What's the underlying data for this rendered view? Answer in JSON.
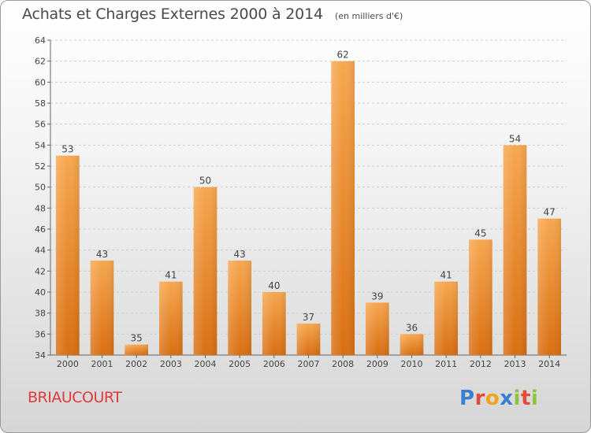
{
  "title": "Achats et Charges Externes 2000 à 2014",
  "subtitle": "(en milliers d'€)",
  "commune": "BRIAUCOURT",
  "logo": {
    "text": "Proxiti",
    "letters": [
      "P",
      "r",
      "o",
      "x",
      "i",
      "t",
      "i"
    ],
    "colors": [
      "#3b7fd0",
      "#e24b3b",
      "#f2a21c",
      "#3b7fd0",
      "#8cc43c",
      "#e24b3b",
      "#8cc43c"
    ]
  },
  "colors": {
    "bar_light": "#f7a74f",
    "bar_dark": "#d96f12",
    "grid": "#cfcfcf",
    "axis": "#666666"
  },
  "chart_data": {
    "type": "bar",
    "title": "Achats et Charges Externes 2000 à 2014",
    "subtitle": "(en milliers d'€)",
    "categories": [
      "2000",
      "2001",
      "2002",
      "2003",
      "2004",
      "2005",
      "2006",
      "2007",
      "2008",
      "2009",
      "2010",
      "2011",
      "2012",
      "2013",
      "2014"
    ],
    "values": [
      53,
      43,
      35,
      41,
      50,
      43,
      40,
      37,
      62,
      39,
      36,
      41,
      45,
      54,
      47
    ],
    "ylim": [
      34,
      64
    ],
    "yticks": [
      34,
      36,
      38,
      40,
      42,
      44,
      46,
      48,
      50,
      52,
      54,
      56,
      58,
      60,
      62,
      64
    ],
    "grid": true,
    "data_labels": true
  }
}
